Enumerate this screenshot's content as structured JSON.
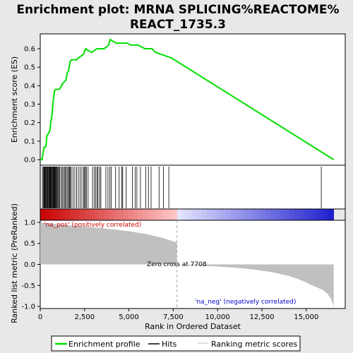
{
  "chart_data": {
    "type": "line",
    "title_line1": "Enrichment plot: MRNA SPLICING%REACTOME%",
    "title_line2": "REACT_1735.3",
    "top_panel": {
      "ylabel": "Enrichment score (ES)",
      "ylim": [
        -0.03,
        0.68
      ],
      "yticks": [
        "0.0",
        "0.1",
        "0.2",
        "0.3",
        "0.4",
        "0.5",
        "0.6"
      ],
      "ytick_values": [
        0.0,
        0.1,
        0.2,
        0.3,
        0.4,
        0.5,
        0.6
      ],
      "es_profile": [
        [
          0,
          0.0
        ],
        [
          100,
          0.0
        ],
        [
          150,
          0.03
        ],
        [
          200,
          0.06
        ],
        [
          260,
          0.07
        ],
        [
          320,
          0.07
        ],
        [
          380,
          0.13
        ],
        [
          450,
          0.14
        ],
        [
          520,
          0.15
        ],
        [
          560,
          0.17
        ],
        [
          600,
          0.21
        ],
        [
          650,
          0.23
        ],
        [
          690,
          0.27
        ],
        [
          720,
          0.31
        ],
        [
          760,
          0.34
        ],
        [
          800,
          0.37
        ],
        [
          860,
          0.38
        ],
        [
          950,
          0.38
        ],
        [
          1050,
          0.38
        ],
        [
          1150,
          0.39
        ],
        [
          1250,
          0.41
        ],
        [
          1350,
          0.42
        ],
        [
          1450,
          0.43
        ],
        [
          1520,
          0.47
        ],
        [
          1600,
          0.48
        ],
        [
          1680,
          0.53
        ],
        [
          1760,
          0.54
        ],
        [
          1900,
          0.54
        ],
        [
          2050,
          0.54
        ],
        [
          2150,
          0.55
        ],
        [
          2300,
          0.56
        ],
        [
          2450,
          0.57
        ],
        [
          2550,
          0.6
        ],
        [
          2700,
          0.59
        ],
        [
          2900,
          0.58
        ],
        [
          3050,
          0.59
        ],
        [
          3200,
          0.6
        ],
        [
          3400,
          0.6
        ],
        [
          3600,
          0.6
        ],
        [
          3750,
          0.61
        ],
        [
          3850,
          0.62
        ],
        [
          3950,
          0.65
        ],
        [
          4100,
          0.64
        ],
        [
          4300,
          0.63
        ],
        [
          4500,
          0.63
        ],
        [
          4700,
          0.63
        ],
        [
          4900,
          0.63
        ],
        [
          5100,
          0.62
        ],
        [
          5300,
          0.62
        ],
        [
          5500,
          0.62
        ],
        [
          5700,
          0.61
        ],
        [
          5900,
          0.6
        ],
        [
          6100,
          0.6
        ],
        [
          6300,
          0.6
        ],
        [
          6500,
          0.58
        ],
        [
          6800,
          0.57
        ],
        [
          7100,
          0.56
        ],
        [
          7400,
          0.55
        ],
        [
          16550,
          0.0
        ]
      ]
    },
    "hits_panel": {
      "hit_positions": [
        120,
        170,
        210,
        240,
        260,
        290,
        320,
        360,
        400,
        430,
        470,
        500,
        530,
        560,
        590,
        620,
        660,
        700,
        730,
        760,
        790,
        820,
        850,
        880,
        920,
        960,
        1000,
        1050,
        1100,
        1180,
        1240,
        1300,
        1380,
        1420,
        1480,
        1550,
        1600,
        1650,
        1700,
        1750,
        1850,
        1950,
        2050,
        2150,
        2250,
        2350,
        2450,
        2500,
        2550,
        2600,
        2700,
        2950,
        3050,
        3120,
        3200,
        3260,
        3350,
        3420,
        3700,
        3820,
        3920,
        4000,
        4250,
        4450,
        4600,
        4650,
        4850,
        5200,
        5350,
        5450,
        5650,
        5950,
        6100,
        6250,
        6700,
        6950,
        7250,
        15850
      ]
    },
    "bottom_panel": {
      "ylabel": "Ranked list metric (PreRanked)",
      "ylim": [
        -1.05,
        1.05
      ],
      "yticks": [
        "1.0",
        "0.5",
        "0.0",
        "-0.5",
        "-1.0"
      ],
      "ytick_values": [
        1.0,
        0.5,
        0.0,
        -0.5,
        -1.0
      ],
      "metric_profile": [
        [
          0,
          1.0
        ],
        [
          400,
          0.98
        ],
        [
          1000,
          0.95
        ],
        [
          2000,
          0.91
        ],
        [
          3000,
          0.88
        ],
        [
          4000,
          0.84
        ],
        [
          5000,
          0.79
        ],
        [
          6000,
          0.72
        ],
        [
          6500,
          0.67
        ],
        [
          7000,
          0.62
        ],
        [
          7400,
          0.56
        ],
        [
          7700,
          0.53
        ],
        [
          7708,
          0.0
        ],
        [
          8500,
          -0.02
        ],
        [
          10000,
          -0.05
        ],
        [
          11000,
          -0.08
        ],
        [
          12000,
          -0.12
        ],
        [
          13000,
          -0.18
        ],
        [
          14000,
          -0.27
        ],
        [
          14500,
          -0.34
        ],
        [
          15000,
          -0.43
        ],
        [
          15500,
          -0.53
        ],
        [
          15900,
          -0.6
        ],
        [
          16200,
          -0.7
        ],
        [
          16400,
          -0.82
        ],
        [
          16550,
          -1.0
        ]
      ],
      "zero_cross_label": "Zero cross at 7708",
      "zero_cross": 7708,
      "pos_label": "'na_pos' (positively correlated)",
      "neg_label": "'na_neg' (negatively correlated)"
    },
    "xlabel": "Rank in Ordered Dataset",
    "xlim": [
      0,
      17200
    ],
    "xticks": [
      "0",
      "2,500",
      "5,000",
      "7,500",
      "10,000",
      "12,500",
      "15,000"
    ],
    "xtick_values": [
      0,
      2500,
      5000,
      7500,
      10000,
      12500,
      15000
    ],
    "n_genes": 16550,
    "legend": [
      "Enrichment profile",
      "Hits",
      "Ranking metric scores"
    ],
    "colors": {
      "es_line": "#00e000",
      "hits": "#000000",
      "metric_fill": "#c0c0c0",
      "pos_text": "#cc0000",
      "neg_text": "#0000cc",
      "zero_line": "#aaaaaa"
    }
  }
}
